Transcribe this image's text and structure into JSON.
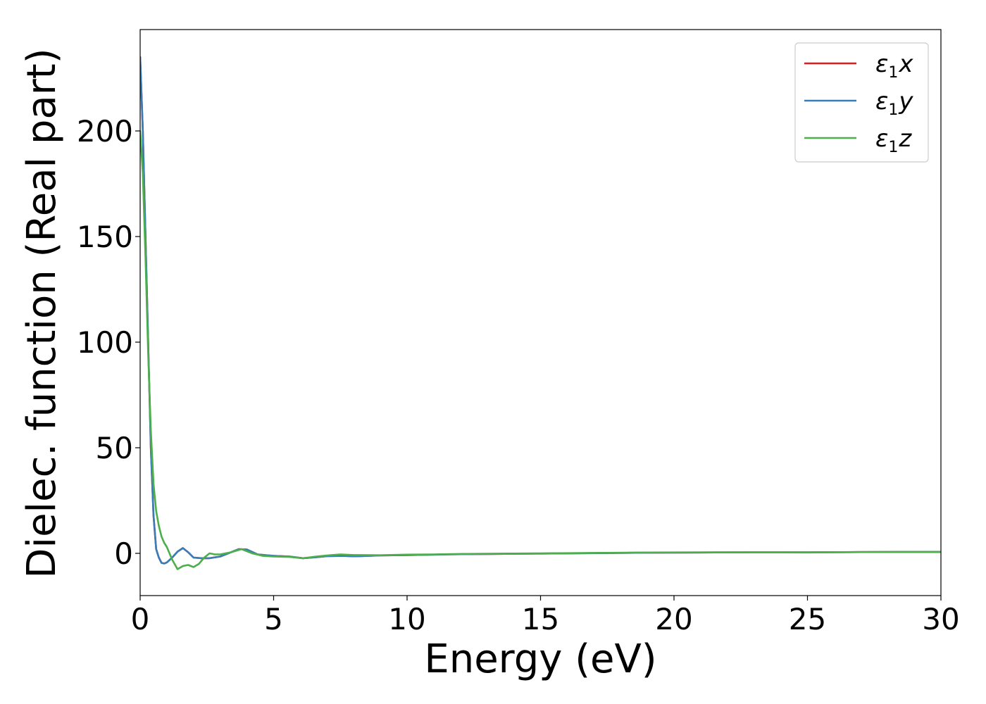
{
  "chart_data": {
    "type": "line",
    "xlabel": "Energy (eV)",
    "ylabel": "Dielec. function (Real part)",
    "xlim": [
      0,
      30
    ],
    "ylim": [
      -20,
      248
    ],
    "xticks": [
      0,
      5,
      10,
      15,
      20,
      25,
      30
    ],
    "yticks": [
      0,
      50,
      100,
      150,
      200
    ],
    "legend_position": "top-right",
    "grid": false,
    "series": [
      {
        "name": "ε1x",
        "legend_base": "ε",
        "legend_sub": "1",
        "legend_var": "x",
        "color": "#e41a1c",
        "x": [
          0.0,
          0.1,
          0.2,
          0.3,
          0.4,
          0.5,
          0.6,
          0.7,
          0.8,
          0.9,
          1.0,
          1.2,
          1.4,
          1.6,
          1.8,
          2.0,
          2.3,
          2.6,
          3.0,
          3.4,
          3.7,
          4.0,
          4.4,
          5.0,
          5.6,
          6.1,
          6.6,
          7.0,
          7.6,
          8.0,
          9.0,
          10.0,
          11.0,
          12.0,
          13.0,
          14.0,
          15.0,
          17.0,
          19.0,
          21.0,
          23.0,
          25.0,
          27.0,
          30.0
        ],
        "y": [
          235,
          200,
          150,
          100,
          50,
          18,
          2,
          -2,
          -4.5,
          -4.8,
          -4.3,
          -2,
          0.8,
          2.5,
          0.5,
          -2,
          -2.3,
          -2.3,
          -1.5,
          0.5,
          2,
          1.8,
          -0.5,
          -1.2,
          -1.5,
          -2.3,
          -1.8,
          -1.3,
          -1.2,
          -1.4,
          -1.0,
          -0.8,
          -0.6,
          -0.4,
          -0.3,
          -0.2,
          -0.1,
          0.1,
          0.3,
          0.4,
          0.5,
          0.5,
          0.6,
          0.7
        ]
      },
      {
        "name": "ε1y",
        "legend_base": "ε",
        "legend_sub": "1",
        "legend_var": "y",
        "color": "#377eb8",
        "x": [
          0.0,
          0.1,
          0.2,
          0.3,
          0.4,
          0.5,
          0.6,
          0.7,
          0.8,
          0.9,
          1.0,
          1.2,
          1.4,
          1.6,
          1.8,
          2.0,
          2.3,
          2.6,
          3.0,
          3.4,
          3.7,
          4.0,
          4.4,
          5.0,
          5.6,
          6.1,
          6.6,
          7.0,
          7.6,
          8.0,
          9.0,
          10.0,
          11.0,
          12.0,
          13.0,
          14.0,
          15.0,
          17.0,
          19.0,
          21.0,
          23.0,
          25.0,
          27.0,
          30.0
        ],
        "y": [
          235,
          200,
          150,
          100,
          50,
          18,
          2,
          -2,
          -4.5,
          -4.8,
          -4.3,
          -2,
          0.8,
          2.5,
          0.5,
          -2,
          -2.3,
          -2.3,
          -1.5,
          0.5,
          2,
          1.8,
          -0.5,
          -1.2,
          -1.5,
          -2.3,
          -1.8,
          -1.3,
          -1.2,
          -1.4,
          -1.0,
          -0.8,
          -0.6,
          -0.4,
          -0.3,
          -0.2,
          -0.1,
          0.1,
          0.3,
          0.4,
          0.5,
          0.5,
          0.6,
          0.7
        ]
      },
      {
        "name": "ε1z",
        "legend_base": "ε",
        "legend_sub": "1",
        "legend_var": "z",
        "color": "#4daf4a",
        "x": [
          0.0,
          0.1,
          0.2,
          0.3,
          0.4,
          0.5,
          0.6,
          0.7,
          0.8,
          0.9,
          1.0,
          1.1,
          1.2,
          1.4,
          1.6,
          1.8,
          2.0,
          2.2,
          2.4,
          2.6,
          2.8,
          3.0,
          3.4,
          3.8,
          4.2,
          4.6,
          5.0,
          5.6,
          6.1,
          6.6,
          7.0,
          7.5,
          8.0,
          9.0,
          10.0,
          11.0,
          12.0,
          13.0,
          14.0,
          15.0,
          17.0,
          19.0,
          21.0,
          23.0,
          25.0,
          27.0,
          30.0
        ],
        "y": [
          200,
          180,
          140,
          95,
          58,
          33,
          20,
          13,
          8,
          5,
          3,
          0,
          -3,
          -7.5,
          -6,
          -5.5,
          -6.5,
          -5,
          -2,
          0,
          -0.5,
          -0.5,
          0.5,
          2,
          0,
          -1.2,
          -1.5,
          -1.7,
          -2.3,
          -1.5,
          -1.0,
          -0.5,
          -0.8,
          -0.9,
          -0.6,
          -0.5,
          -0.3,
          -0.2,
          -0.1,
          0.0,
          0.2,
          0.4,
          0.5,
          0.5,
          0.4,
          0.6,
          0.7
        ]
      }
    ]
  }
}
